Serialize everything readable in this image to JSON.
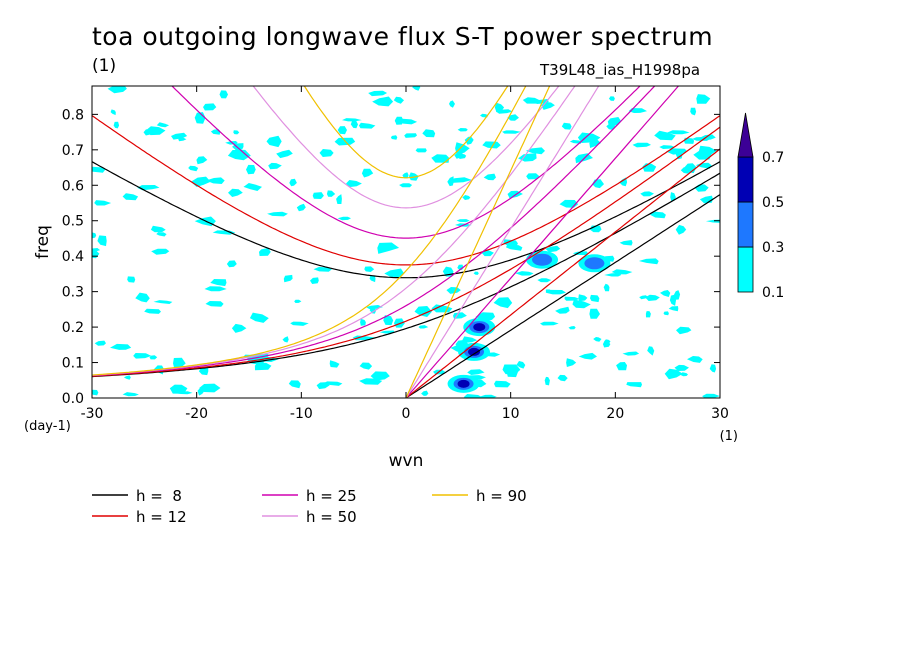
{
  "title": "toa outgoing longwave flux S-T power spectrum",
  "title_unit": "(1)",
  "run_label": "T39L48_ias_H1998pa",
  "chart_data": {
    "type": "heatmap",
    "title": "toa outgoing longwave flux S-T power spectrum",
    "subtitle": "T39L48_ias_H1998pa",
    "xlabel": "wvn",
    "ylabel": "freq",
    "x_unit": "(1)",
    "y_unit": "(day-1)",
    "xlim": [
      -30,
      30
    ],
    "ylim": [
      0,
      0.88
    ],
    "x_ticks": [
      -30,
      -20,
      -10,
      0,
      10,
      20,
      30
    ],
    "y_ticks": [
      0.0,
      0.1,
      0.2,
      0.3,
      0.4,
      0.5,
      0.6,
      0.7,
      0.8
    ],
    "x_tick_labels": [
      "-30",
      "-20",
      "-10",
      "0",
      "10",
      "20",
      "30"
    ],
    "y_tick_labels": [
      "0.0",
      "0.1",
      "0.2",
      "0.3",
      "0.4",
      "0.5",
      "0.6",
      "0.7",
      "0.8"
    ],
    "contour_levels": [
      0.1,
      0.3,
      0.5,
      0.7
    ],
    "level_labels": [
      "0.1",
      "0.3",
      "0.5",
      "0.7"
    ],
    "level_colors": [
      "#00ffff",
      "#1e78ff",
      "#0000b4",
      "#3c0096"
    ],
    "hotspots": [
      {
        "x": 5.5,
        "y": 0.04,
        "value": 0.75
      },
      {
        "x": 6.5,
        "y": 0.13,
        "value": 0.5
      },
      {
        "x": 7,
        "y": 0.2,
        "value": 0.55
      },
      {
        "x": 13,
        "y": 0.39,
        "value": 0.35
      },
      {
        "x": 18,
        "y": 0.38,
        "value": 0.35
      }
    ],
    "dispersion_curves": [
      {
        "label": "h =  8",
        "h": 8,
        "color": "#000000"
      },
      {
        "label": "h = 12",
        "h": 12,
        "color": "#e00000"
      },
      {
        "label": "h = 25",
        "h": 25,
        "color": "#d000b0"
      },
      {
        "label": "h = 50",
        "h": 50,
        "color": "#e090e0"
      },
      {
        "label": "h = 90",
        "h": 90,
        "color": "#f0c000"
      }
    ]
  }
}
